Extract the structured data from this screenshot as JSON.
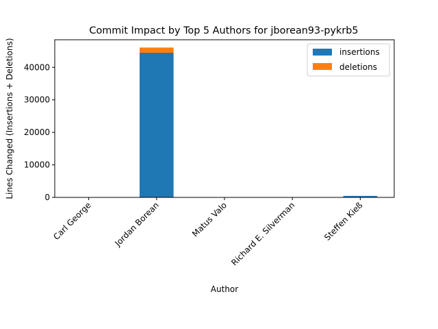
{
  "chart_data": {
    "type": "bar",
    "stacked": true,
    "title": "Commit Impact by Top 5 Authors for jborean93-pykrb5",
    "xlabel": "Author",
    "ylabel": "Lines Changed (Insertions + Deletions)",
    "categories": [
      "Carl George",
      "Jordan Borean",
      "Matus Valo",
      "Richard E. Silverman",
      "Steffen Kieß"
    ],
    "series": [
      {
        "name": "insertions",
        "color": "#1f77b4",
        "values": [
          5,
          44500,
          3,
          4,
          450
        ]
      },
      {
        "name": "deletions",
        "color": "#ff7f0e",
        "values": [
          2,
          1600,
          1,
          2,
          30
        ]
      }
    ],
    "ylim": [
      0,
      48500
    ],
    "yticks": [
      0,
      10000,
      20000,
      30000,
      40000
    ],
    "ytick_labels": [
      "0",
      "10000",
      "20000",
      "30000",
      "40000"
    ],
    "legend": "top-right",
    "grid": false
  }
}
